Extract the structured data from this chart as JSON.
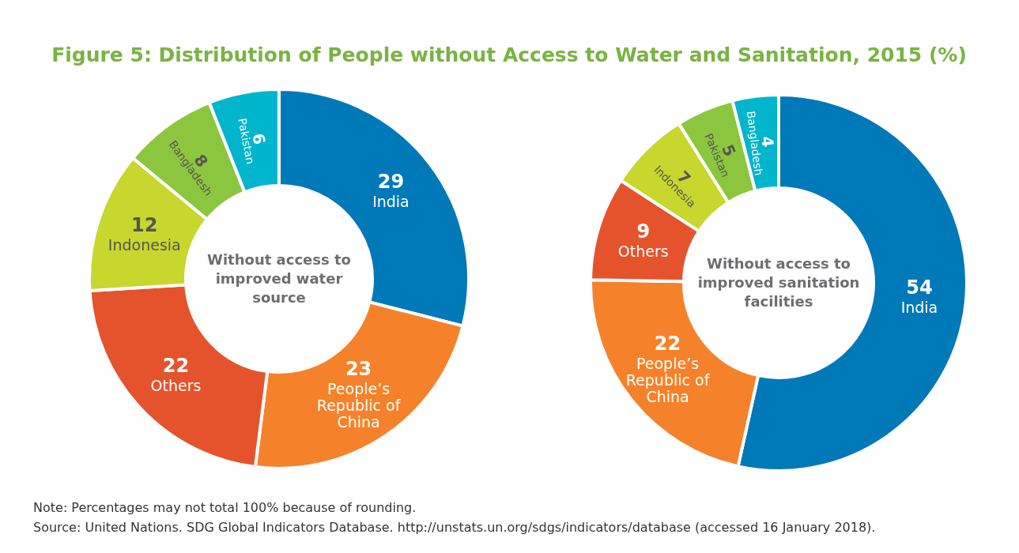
{
  "chart_data": [
    {
      "type": "donut",
      "title": "Figure 5: Distribution of People without Access to Water and Sanitation, 2015 (%)",
      "categories": [
        "India",
        "People’s Republic of China",
        "Others",
        "Indonesia",
        "Bangladesh",
        "Pakistan"
      ],
      "values": [
        29,
        23,
        22,
        12,
        8,
        6
      ],
      "colors": [
        "#0079b8",
        "#f5822a",
        "#e5532d",
        "#c8d72e",
        "#8cc63f",
        "#00b5cc"
      ],
      "data_labels": true,
      "annotations": [
        "Without access to improved water source"
      ]
    },
    {
      "type": "donut",
      "categories": [
        "India",
        "People’s Republic of China",
        "Others",
        "Indonesia",
        "Pakistan",
        "Bangladesh"
      ],
      "values": [
        54,
        22,
        9,
        7,
        5,
        4
      ],
      "colors": [
        "#0079b8",
        "#f5822a",
        "#e5532d",
        "#c8d72e",
        "#8cc63f",
        "#00b5cc"
      ],
      "data_labels": true,
      "annotations": [
        "Without access to improved sanitation facilities",
        "Note: Percentages may not total 100% because of rounding.",
        "Source: United Nations. SDG Global Indicators Database. http://unstats.un.org/sdgs/indicators/database (accessed 16 January 2018)."
      ]
    }
  ]
}
